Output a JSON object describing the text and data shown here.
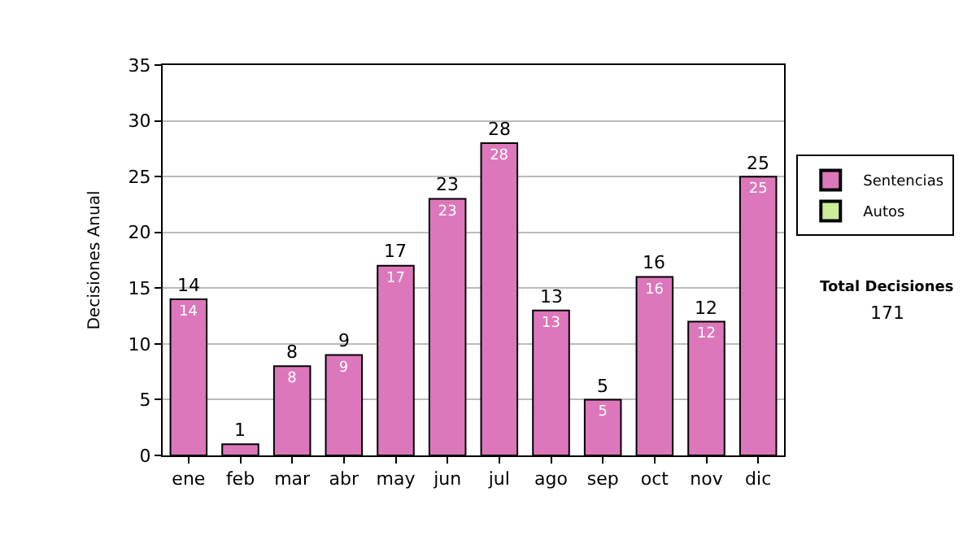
{
  "chart_data": {
    "type": "bar",
    "ylabel": "Decisiones Anual",
    "categories": [
      "ene",
      "feb",
      "mar",
      "abr",
      "may",
      "jun",
      "jul",
      "ago",
      "sep",
      "oct",
      "nov",
      "dic"
    ],
    "series": [
      {
        "name": "Sentencias",
        "color": "#dd77bb",
        "values": [
          14,
          1,
          8,
          9,
          17,
          23,
          28,
          13,
          5,
          16,
          12,
          25
        ],
        "value_labels": [
          "14",
          null,
          "8",
          "9",
          "17",
          "23",
          "28",
          "13",
          "5",
          "16",
          "12",
          "25"
        ]
      },
      {
        "name": "Autos",
        "color": "#ccee99",
        "values": [
          null,
          null,
          null,
          null,
          null,
          null,
          null,
          null,
          null,
          null,
          null,
          null
        ]
      }
    ],
    "stacked": true,
    "totals": [
      "14",
      "1",
      "8",
      "9",
      "17",
      "23",
      "28",
      "13",
      "5",
      "16",
      "12",
      "25"
    ],
    "ylim": [
      0,
      35
    ],
    "yticks": [
      0,
      5,
      10,
      15,
      20,
      25,
      30,
      35
    ],
    "grid": "y",
    "legend": "right",
    "annotations": [
      "Total Decisiones",
      "171"
    ]
  }
}
